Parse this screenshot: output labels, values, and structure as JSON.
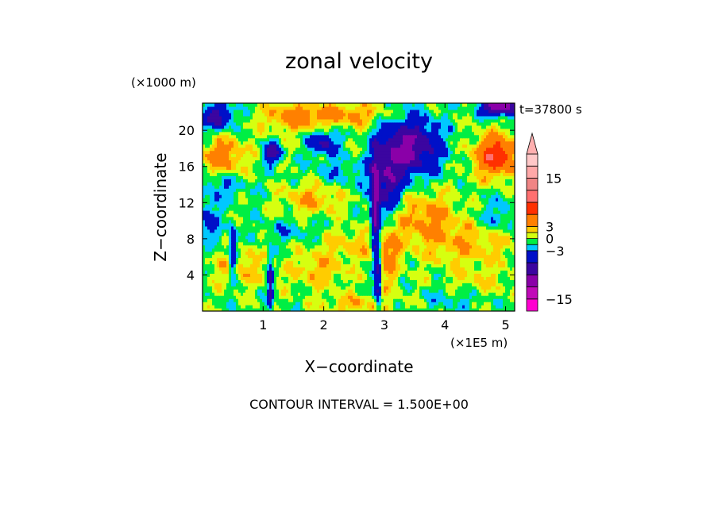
{
  "chart_data": {
    "type": "heatmap",
    "title": "zonal velocity",
    "xlabel": "X−coordinate",
    "ylabel": "Z−coordinate",
    "x_unit": "(×1E5 m)",
    "y_unit": "(×1000 m)",
    "time_label": "t=37800 s",
    "footer": "CONTOUR INTERVAL = 1.500E+00",
    "xlim": [
      0,
      5.15
    ],
    "ylim": [
      0,
      23
    ],
    "x_ticks": [
      1,
      2,
      3,
      4,
      5
    ],
    "y_ticks": [
      4,
      8,
      12,
      16,
      20
    ],
    "colorbar": {
      "range": [
        -18,
        21
      ],
      "extend": "max",
      "tick_values": [
        15,
        3,
        0,
        -3,
        -15
      ],
      "tick_labels": [
        "15",
        "3",
        "0",
        "−3",
        "−15"
      ],
      "levels": [
        {
          "from": -18,
          "to": -15,
          "color": "#ff00d0"
        },
        {
          "from": -15,
          "to": -12,
          "color": "#c00ab8"
        },
        {
          "from": -12,
          "to": -9,
          "color": "#8a00a8"
        },
        {
          "from": -9,
          "to": -6,
          "color": "#3b05a0"
        },
        {
          "from": -6,
          "to": -3,
          "color": "#0010c8"
        },
        {
          "from": -3,
          "to": -1.5,
          "color": "#00c8ff"
        },
        {
          "from": -1.5,
          "to": 0,
          "color": "#00ee44"
        },
        {
          "from": 0,
          "to": 1.5,
          "color": "#d6ff10"
        },
        {
          "from": 1.5,
          "to": 3,
          "color": "#ffcc00"
        },
        {
          "from": 3,
          "to": 6,
          "color": "#ff8000"
        },
        {
          "from": 6,
          "to": 9,
          "color": "#ff3000"
        },
        {
          "from": 9,
          "to": 12,
          "color": "#ff7070"
        },
        {
          "from": 12,
          "to": 15,
          "color": "#f08585"
        },
        {
          "from": 15,
          "to": 18,
          "color": "#ffa8a8"
        },
        {
          "from": 18,
          "to": 21,
          "color": "#ffc8c8"
        }
      ],
      "extend_color": "#ffb0b0"
    },
    "field": {
      "x_range": [
        0,
        5.15
      ],
      "z_range": [
        0,
        23
      ],
      "background_value": -0.5,
      "features": [
        {
          "x": 3.45,
          "z": 18.2,
          "sx": 0.32,
          "sz": 2.2,
          "amp": -9
        },
        {
          "x": 3.05,
          "z": 14.5,
          "sx": 0.18,
          "sz": 3.0,
          "amp": -7
        },
        {
          "x": 2.85,
          "z": 11.0,
          "sx": 0.05,
          "sz": 4.0,
          "amp": -9
        },
        {
          "x": 1.15,
          "z": 17.5,
          "sx": 0.1,
          "sz": 0.8,
          "amp": -7
        },
        {
          "x": 0.25,
          "z": 21.5,
          "sx": 0.18,
          "sz": 1.0,
          "amp": -7
        },
        {
          "x": 4.9,
          "z": 22.6,
          "sx": 0.2,
          "sz": 0.6,
          "amp": -12
        },
        {
          "x": 2.0,
          "z": 18.7,
          "sx": 0.16,
          "sz": 1.0,
          "amp": -6
        },
        {
          "x": 0.5,
          "z": 6.5,
          "sx": 0.05,
          "sz": 2.0,
          "amp": -7
        },
        {
          "x": 1.12,
          "z": 3.0,
          "sx": 0.03,
          "sz": 2.2,
          "amp": -7
        },
        {
          "x": 2.9,
          "z": 3.2,
          "sx": 0.04,
          "sz": 3.0,
          "amp": -6
        },
        {
          "x": 0.1,
          "z": 10.0,
          "sx": 0.12,
          "sz": 1.6,
          "amp": -4
        },
        {
          "x": 4.85,
          "z": 17.2,
          "sx": 0.25,
          "sz": 1.6,
          "amp": 9
        },
        {
          "x": 0.35,
          "z": 17.2,
          "sx": 0.25,
          "sz": 1.5,
          "amp": 5
        },
        {
          "x": 1.55,
          "z": 21.5,
          "sx": 0.4,
          "sz": 1.1,
          "amp": 5
        },
        {
          "x": 2.5,
          "z": 21.8,
          "sx": 0.4,
          "sz": 0.9,
          "amp": 4
        },
        {
          "x": 3.65,
          "z": 10.5,
          "sx": 0.4,
          "sz": 2.0,
          "amp": 4
        },
        {
          "x": 1.8,
          "z": 12.5,
          "sx": 0.35,
          "sz": 1.2,
          "amp": 3.5
        },
        {
          "x": 1.9,
          "z": 4.5,
          "sx": 0.35,
          "sz": 1.4,
          "amp": 3
        },
        {
          "x": 0.6,
          "z": 5.0,
          "sx": 0.3,
          "sz": 1.6,
          "amp": 3
        },
        {
          "x": 2.45,
          "z": 7.5,
          "sx": 0.4,
          "sz": 1.2,
          "amp": 2.5
        },
        {
          "x": 4.4,
          "z": 7.5,
          "sx": 0.6,
          "sz": 1.8,
          "amp": 3
        },
        {
          "x": 4.55,
          "z": 3.0,
          "sx": 0.4,
          "sz": 1.2,
          "amp": 2
        },
        {
          "x": 3.05,
          "z": 6.0,
          "sx": 0.15,
          "sz": 2.5,
          "amp": 4
        },
        {
          "x": 2.55,
          "z": 0.8,
          "sx": 0.4,
          "sz": 0.8,
          "amp": 3
        },
        {
          "x": 4.9,
          "z": 10.5,
          "sx": 0.3,
          "sz": 1.3,
          "amp": -2.5
        },
        {
          "x": 0.3,
          "z": 14.0,
          "sx": 0.3,
          "sz": 1.0,
          "amp": -2.5
        },
        {
          "x": 2.3,
          "z": 15.3,
          "sx": 0.35,
          "sz": 1.0,
          "amp": -2
        },
        {
          "x": 4.2,
          "z": 1.5,
          "sx": 0.35,
          "sz": 0.9,
          "amp": -2
        },
        {
          "x": 1.45,
          "z": 8.8,
          "sx": 0.35,
          "sz": 0.8,
          "amp": -1.8
        }
      ]
    }
  }
}
